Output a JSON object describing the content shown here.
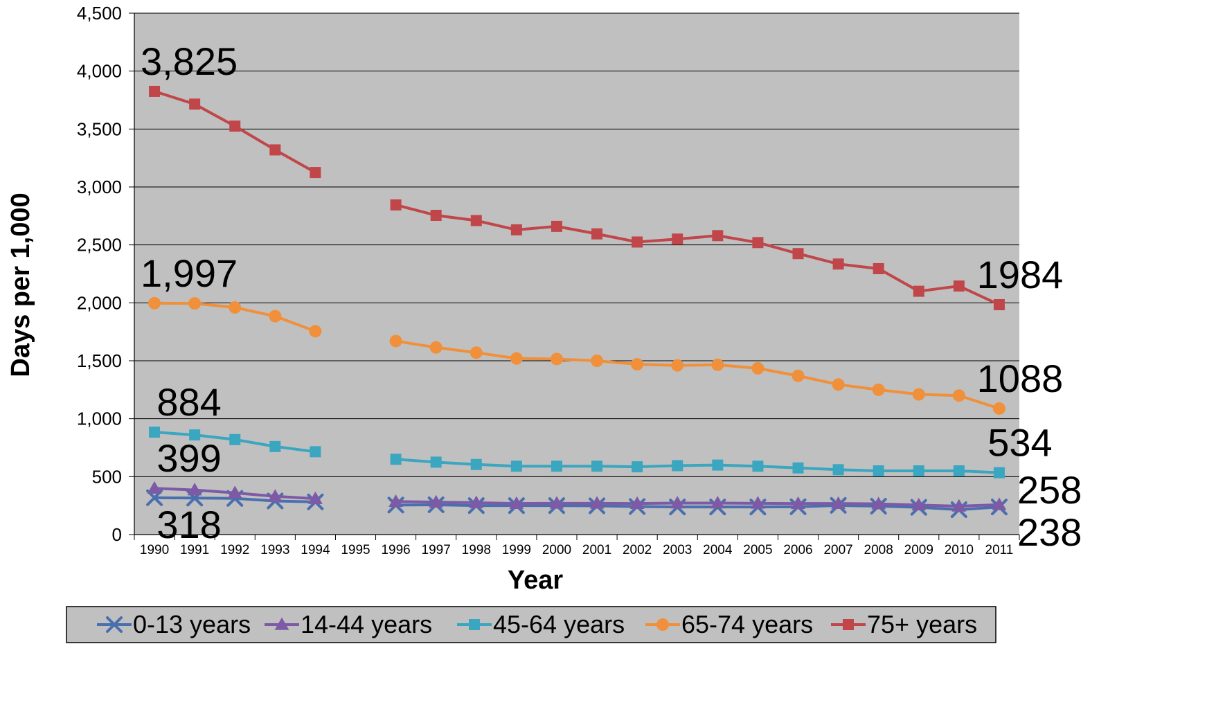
{
  "chart_data": {
    "type": "line",
    "title": "",
    "xlabel": "Year",
    "ylabel": "Days per 1,000",
    "ylim": [
      0,
      4500
    ],
    "y_ticks": [
      "0",
      "500",
      "1,000",
      "1,500",
      "2,000",
      "2,500",
      "3,000",
      "3,500",
      "4,000",
      "4,500"
    ],
    "y_tick_values": [
      0,
      500,
      1000,
      1500,
      2000,
      2500,
      3000,
      3500,
      4000,
      4500
    ],
    "categories": [
      "1990",
      "1991",
      "1992",
      "1993",
      "1994",
      "1995",
      "1996",
      "1997",
      "1998",
      "1999",
      "2000",
      "2001",
      "2002",
      "2003",
      "2004",
      "2005",
      "2006",
      "2007",
      "2008",
      "2009",
      "2010",
      "2011"
    ],
    "grid": true,
    "background": "#c0c0c0",
    "legend_position": "bottom",
    "series": [
      {
        "name": "0-13 years",
        "color": "#4a6fae",
        "marker": "x",
        "values": [
          318,
          315,
          312,
          290,
          282,
          null,
          255,
          257,
          250,
          250,
          250,
          248,
          242,
          238,
          238,
          238,
          240,
          252,
          245,
          235,
          215,
          238
        ]
      },
      {
        "name": "14-44 years",
        "color": "#7d5aa6",
        "marker": "triangle",
        "values": [
          399,
          385,
          360,
          330,
          310,
          null,
          285,
          280,
          275,
          268,
          270,
          270,
          268,
          272,
          272,
          270,
          268,
          268,
          265,
          255,
          245,
          258
        ]
      },
      {
        "name": "45-64 years",
        "color": "#3aa6bf",
        "marker": "square",
        "values": [
          884,
          860,
          820,
          760,
          715,
          null,
          650,
          625,
          605,
          590,
          590,
          590,
          585,
          595,
          600,
          590,
          575,
          560,
          550,
          550,
          550,
          534
        ]
      },
      {
        "name": "65-74 years",
        "color": "#f0903a",
        "marker": "circle",
        "values": [
          1997,
          1995,
          1960,
          1885,
          1755,
          null,
          1670,
          1615,
          1570,
          1520,
          1515,
          1500,
          1470,
          1460,
          1465,
          1435,
          1370,
          1295,
          1250,
          1210,
          1200,
          1088
        ]
      },
      {
        "name": "75+ years",
        "color": "#c0464a",
        "marker": "square",
        "values": [
          3825,
          3715,
          3525,
          3320,
          3125,
          null,
          2845,
          2755,
          2710,
          2630,
          2660,
          2595,
          2525,
          2550,
          2580,
          2520,
          2425,
          2335,
          2295,
          2100,
          2145,
          1984
        ]
      }
    ],
    "annotations": [
      {
        "text": "3,825",
        "x": "1990",
        "y": 3825,
        "pos": "above"
      },
      {
        "text": "1,997",
        "x": "1990",
        "y": 1997,
        "pos": "above"
      },
      {
        "text": "884",
        "x": "1990",
        "y": 884,
        "pos": "above"
      },
      {
        "text": "399",
        "x": "1990",
        "y": 399,
        "pos": "above"
      },
      {
        "text": "318",
        "x": "1990",
        "y": 318,
        "pos": "below"
      },
      {
        "text": "1984",
        "x": "2011",
        "y": 1984,
        "pos": "above"
      },
      {
        "text": "1088",
        "x": "2011",
        "y": 1088,
        "pos": "above"
      },
      {
        "text": "534",
        "x": "2011",
        "y": 534,
        "pos": "above"
      },
      {
        "text": "258",
        "x": "2011",
        "y": 258,
        "pos": "right-upper"
      },
      {
        "text": "238",
        "x": "2011",
        "y": 238,
        "pos": "right-lower"
      }
    ]
  }
}
